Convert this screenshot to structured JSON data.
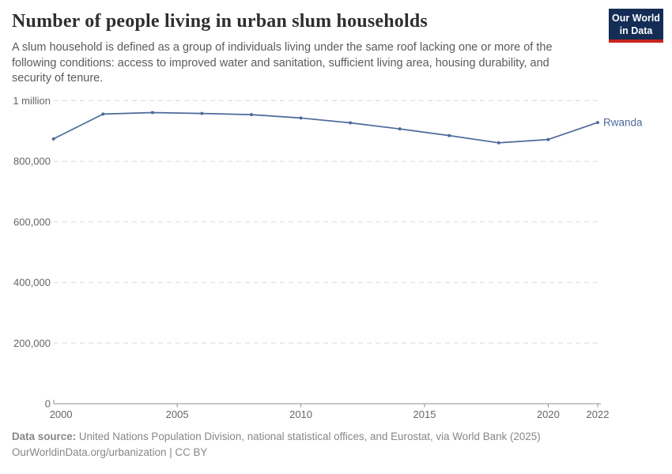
{
  "header": {
    "title": "Number of people living in urban slum households",
    "subtitle": "A slum household is defined as a group of individuals living under the same roof lacking one or more of the following conditions: access to improved water and sanitation, sufficient living area, housing durability, and security of tenure.",
    "logo_line1": "Our World",
    "logo_line2": "in Data"
  },
  "chart_data": {
    "type": "line",
    "title": "Number of people living in urban slum households",
    "xlabel": "",
    "ylabel": "",
    "xlim": [
      2000,
      2022
    ],
    "ylim": [
      0,
      1000000
    ],
    "grid": "dashed-horizontal",
    "legend_position": "end-of-line-label",
    "x": [
      2000,
      2002,
      2004,
      2006,
      2008,
      2010,
      2012,
      2014,
      2016,
      2018,
      2020,
      2022
    ],
    "series": [
      {
        "name": "Rwanda",
        "color": "#4C6A9C",
        "values": [
          874000,
          956000,
          961000,
          958000,
          954000,
          943000,
          927000,
          907000,
          885000,
          861000,
          872000,
          928000
        ]
      }
    ],
    "x_ticks": [
      {
        "value": 2000,
        "label": "2000"
      },
      {
        "value": 2005,
        "label": "2005"
      },
      {
        "value": 2010,
        "label": "2010"
      },
      {
        "value": 2015,
        "label": "2015"
      },
      {
        "value": 2020,
        "label": "2020"
      },
      {
        "value": 2022,
        "label": "2022"
      }
    ],
    "y_ticks": [
      {
        "value": 0,
        "label": "0"
      },
      {
        "value": 200000,
        "label": "200,000"
      },
      {
        "value": 400000,
        "label": "400,000"
      },
      {
        "value": 600000,
        "label": "600,000"
      },
      {
        "value": 800000,
        "label": "800,000"
      },
      {
        "value": 1000000,
        "label": "1 million"
      }
    ]
  },
  "footer": {
    "source_bold": "Data source:",
    "source_rest": "United Nations Population Division, national statistical offices, and Eurostat, via World Bank (2025)",
    "license": "OurWorldinData.org/urbanization | CC BY"
  },
  "colors": {
    "series_blue": "#4C6A9C",
    "gridline": "#dcdcdc",
    "axis": "#8f8f8f",
    "tick_label": "#666666",
    "title_text": "#2e2e2e",
    "subtitle_text": "#5b5b5b",
    "footer_text": "#878787",
    "logo_navy": "#142d55",
    "logo_red": "#c8231e"
  }
}
